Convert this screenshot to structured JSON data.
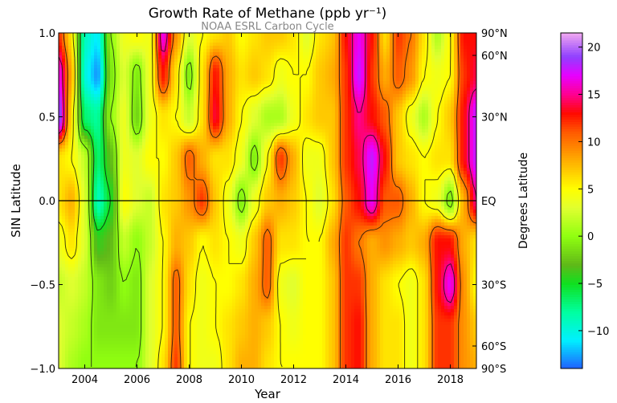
{
  "chart_data": {
    "type": "heatmap",
    "title": "Growth Rate of Methane (ppb yr⁻¹)",
    "subtitle": "NOAA ESRL Carbon Cycle",
    "xlabel": "Year",
    "ylabel": "SIN Latitude",
    "ylabel_right": "Degrees Latitude",
    "xlim": [
      2003,
      2019
    ],
    "ylim": [
      -1.0,
      1.0
    ],
    "x_ticks": [
      "2004",
      "2006",
      "2008",
      "2010",
      "2012",
      "2014",
      "2016",
      "2018"
    ],
    "x_tick_values": [
      2004,
      2006,
      2008,
      2010,
      2012,
      2014,
      2016,
      2018
    ],
    "y_ticks": [
      "1.0",
      "0.5",
      "0.0",
      "−0.5",
      "−1.0"
    ],
    "y_tick_values": [
      1.0,
      0.5,
      0.0,
      -0.5,
      -1.0
    ],
    "right_ticks": [
      "90°N",
      "60°N",
      "30°N",
      "EQ",
      "30°S",
      "60°S",
      "90°S"
    ],
    "right_tick_values": [
      1.0,
      0.866,
      0.5,
      0.0,
      -0.5,
      -0.866,
      -1.0
    ],
    "reference_line": 0.0,
    "colorbar": {
      "range": [
        -14,
        21.5
      ],
      "ticks": [
        "20",
        "15",
        "10",
        "5",
        "0",
        "−5",
        "−10"
      ],
      "tick_values": [
        20,
        15,
        10,
        5,
        0,
        -5,
        -10
      ],
      "colormap_stops": [
        [
          -14,
          "#2060ff"
        ],
        [
          -11,
          "#00f0ff"
        ],
        [
          -8,
          "#00ffa0"
        ],
        [
          -5,
          "#10e020"
        ],
        [
          -3,
          "#60b818"
        ],
        [
          0,
          "#90ff10"
        ],
        [
          3,
          "#e0ff30"
        ],
        [
          5,
          "#ffff00"
        ],
        [
          8,
          "#ffae00"
        ],
        [
          11,
          "#ff5a00"
        ],
        [
          13,
          "#ff0a00"
        ],
        [
          15,
          "#ff0090"
        ],
        [
          17,
          "#e800ff"
        ],
        [
          19,
          "#9040ff"
        ],
        [
          21.5,
          "#f0a8f0"
        ]
      ]
    },
    "contour_levels": [
      -5,
      0,
      5,
      10,
      15,
      20
    ],
    "x": [
      2003.0,
      2003.5,
      2004.0,
      2004.5,
      2005.0,
      2005.5,
      2006.0,
      2006.5,
      2007.0,
      2007.5,
      2008.0,
      2008.5,
      2009.0,
      2009.5,
      2010.0,
      2010.5,
      2011.0,
      2011.5,
      2012.0,
      2012.5,
      2013.0,
      2013.5,
      2014.0,
      2014.5,
      2015.0,
      2015.5,
      2016.0,
      2016.5,
      2017.0,
      2017.5,
      2018.0,
      2018.5,
      2019.0
    ],
    "y": [
      1.0,
      0.75,
      0.5,
      0.25,
      0.0,
      -0.25,
      -0.5,
      -0.75,
      -1.0
    ],
    "values": [
      [
        12,
        6,
        -9,
        -11,
        0,
        4,
        5,
        4,
        17,
        9,
        3,
        5,
        6,
        7,
        5,
        6,
        7,
        7,
        6,
        3,
        6,
        7,
        13,
        17,
        13,
        6,
        12,
        10,
        6,
        1,
        5,
        13,
        13
      ],
      [
        17,
        8,
        -10,
        -13,
        -1,
        3,
        -1,
        4,
        13,
        6,
        -1,
        6,
        13,
        8,
        6,
        7,
        6,
        4,
        5,
        5,
        7,
        8,
        12,
        18,
        12,
        8,
        11,
        9,
        5,
        4,
        5,
        12,
        14
      ],
      [
        20,
        6,
        -7,
        -8,
        0,
        4,
        -2,
        4,
        6,
        5,
        2,
        6,
        14,
        8,
        5,
        3,
        1,
        1,
        4,
        6,
        7,
        7,
        12,
        15,
        13,
        11,
        7,
        4,
        1,
        5,
        7,
        13,
        18
      ],
      [
        6,
        5,
        2,
        -7,
        -3,
        4,
        3,
        5,
        5,
        7,
        11,
        8,
        6,
        6,
        4,
        -1,
        5,
        12,
        8,
        4,
        4,
        7,
        12,
        14,
        18,
        13,
        7,
        6,
        5,
        6,
        6,
        13,
        18
      ],
      [
        6,
        8,
        3,
        -9,
        -5,
        5,
        3,
        2,
        6,
        7,
        9,
        12,
        7,
        4,
        -1,
        4,
        7,
        8,
        7,
        5,
        3,
        6,
        11,
        13,
        17,
        11,
        11,
        8,
        5,
        4,
        -1,
        8,
        15
      ],
      [
        4,
        6,
        3,
        -4,
        -3,
        2,
        0,
        2,
        5,
        8,
        7,
        5,
        6,
        5,
        4,
        7,
        11,
        6,
        6,
        5,
        5,
        8,
        12,
        10,
        8,
        9,
        8,
        7,
        8,
        13,
        13,
        8,
        6
      ],
      [
        2,
        3,
        2,
        -1,
        -2,
        0,
        -1,
        3,
        5,
        11,
        6,
        4,
        5,
        5,
        6,
        8,
        11,
        4,
        3,
        5,
        5,
        7,
        12,
        12,
        8,
        6,
        5,
        4,
        6,
        13,
        17,
        9,
        5
      ],
      [
        3,
        2,
        1,
        -1,
        -1,
        -1,
        -1,
        3,
        5,
        11,
        5,
        4,
        5,
        6,
        7,
        8,
        7,
        5,
        4,
        5,
        5,
        7,
        12,
        13,
        8,
        6,
        6,
        4,
        6,
        12,
        12,
        9,
        7
      ],
      [
        3,
        1,
        0,
        0,
        0,
        0,
        0,
        3,
        6,
        12,
        5,
        4,
        4,
        6,
        8,
        8,
        6,
        5,
        5,
        5,
        5,
        7,
        12,
        13,
        8,
        6,
        6,
        4,
        6,
        12,
        12,
        9,
        8
      ]
    ]
  }
}
